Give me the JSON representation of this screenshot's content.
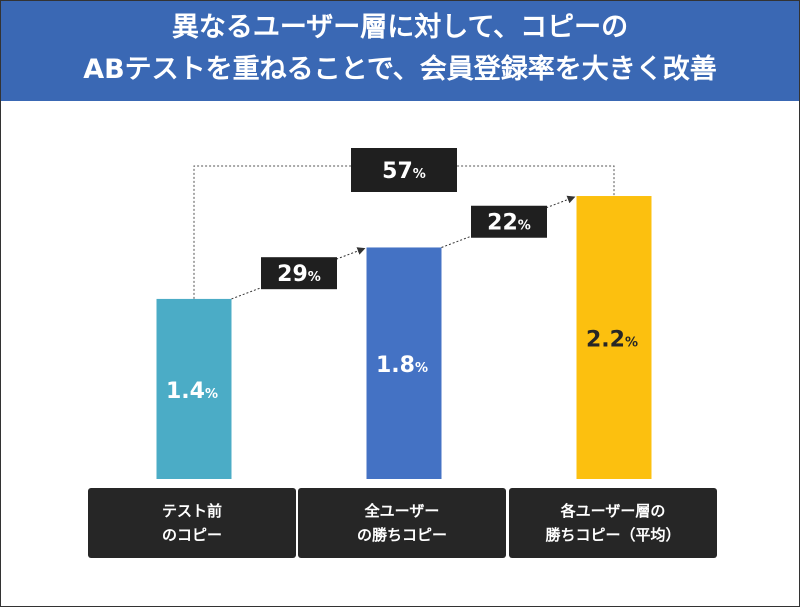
{
  "header": {
    "title_line1": "異なるユーザー層に対して、コピーの",
    "title_line2": "ABテストを重ねることで、会員登録率を大きく改善",
    "background": "#3a68b4"
  },
  "chart_data": {
    "type": "bar",
    "unit": "%",
    "categories": [
      [
        "テスト前",
        "のコピー"
      ],
      [
        "全ユーザー",
        "の勝ちコピー"
      ],
      [
        "各ユーザー層の",
        "勝ちコピー（平均）"
      ]
    ],
    "values": [
      1.4,
      1.8,
      2.2
    ],
    "value_labels": [
      "1.4",
      "1.8",
      "2.2"
    ],
    "colors": [
      "#4bacc6",
      "#4472c4",
      "#fcc00f"
    ],
    "value_label_colors": [
      "#ffffff",
      "#ffffff",
      "#262626"
    ],
    "steps": [
      {
        "from": 0,
        "to": 1,
        "label": "29",
        "unit": "%"
      },
      {
        "from": 1,
        "to": 2,
        "label": "22",
        "unit": "%"
      }
    ],
    "total": {
      "from": 0,
      "to": 2,
      "label": "57",
      "unit": "%"
    },
    "title": "",
    "xlabel": "",
    "ylabel": "",
    "grid": false,
    "legend": "none"
  }
}
